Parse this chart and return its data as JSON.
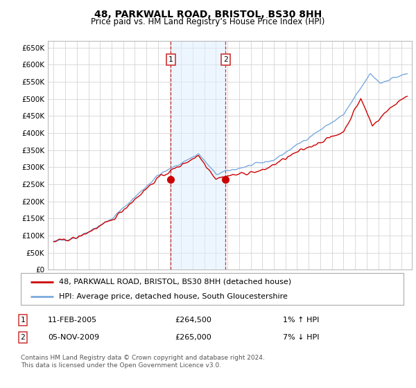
{
  "title": "48, PARKWALL ROAD, BRISTOL, BS30 8HH",
  "subtitle": "Price paid vs. HM Land Registry’s House Price Index (HPI)",
  "ylim": [
    0,
    670000
  ],
  "yticks": [
    0,
    50000,
    100000,
    150000,
    200000,
    250000,
    300000,
    350000,
    400000,
    450000,
    500000,
    550000,
    600000,
    650000
  ],
  "ytick_labels": [
    "£0",
    "£50K",
    "£100K",
    "£150K",
    "£200K",
    "£250K",
    "£300K",
    "£350K",
    "£400K",
    "£450K",
    "£500K",
    "£550K",
    "£600K",
    "£650K"
  ],
  "xmin": 1994.5,
  "xmax": 2025.9,
  "sale1_x": 2005.11,
  "sale1_y": 264500,
  "sale2_x": 2009.84,
  "sale2_y": 265000,
  "legend_property": "48, PARKWALL ROAD, BRISTOL, BS30 8HH (detached house)",
  "legend_hpi": "HPI: Average price, detached house, South Gloucestershire",
  "table_row1": [
    "1",
    "11-FEB-2005",
    "£264,500",
    "1% ↑ HPI"
  ],
  "table_row2": [
    "2",
    "05-NOV-2009",
    "£265,000",
    "7% ↓ HPI"
  ],
  "footnote": "Contains HM Land Registry data © Crown copyright and database right 2024.\nThis data is licensed under the Open Government Licence v3.0.",
  "color_red": "#cc0000",
  "color_blue": "#7aaadd",
  "color_shade": "#ddeeff",
  "color_grid": "#cccccc",
  "color_box": "#cc3333"
}
